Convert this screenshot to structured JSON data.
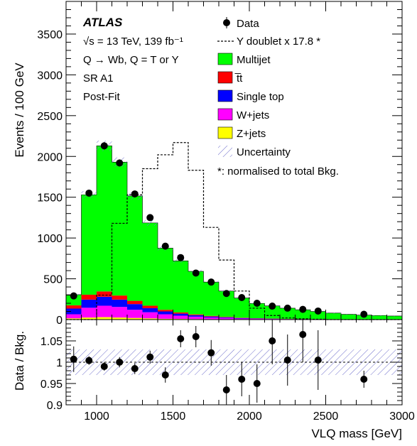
{
  "chart_data": {
    "type": "bar",
    "xlabel": "VLQ mass [GeV]",
    "xlim": [
      800,
      3000
    ],
    "x_ticks": [
      "1000",
      "1500",
      "2000",
      "2500",
      "3000"
    ],
    "bin_edges": [
      800,
      900,
      1000,
      1100,
      1200,
      1300,
      1400,
      1500,
      1600,
      1700,
      1800,
      1900,
      2000,
      2100,
      2200,
      2300,
      2400,
      2500,
      2600,
      2700,
      2800,
      2900,
      3000
    ],
    "main": {
      "ylabel": "Events / 100 GeV",
      "ylim": [
        0,
        3900
      ],
      "y_ticks": [
        "0",
        "500",
        "1000",
        "1500",
        "2000",
        "2500",
        "3000",
        "3500"
      ],
      "stack": [
        {
          "name": "Z+jets",
          "color": "#ffff00",
          "values": [
            15,
            25,
            30,
            25,
            20,
            15,
            10,
            8,
            6,
            5,
            4,
            3,
            2,
            2,
            1,
            1,
            1,
            1,
            0,
            0,
            0,
            0
          ]
        },
        {
          "name": "W+jets",
          "color": "#ff00ff",
          "values": [
            50,
            120,
            140,
            130,
            100,
            75,
            55,
            40,
            30,
            20,
            15,
            10,
            8,
            6,
            4,
            3,
            2,
            2,
            1,
            1,
            1,
            1
          ]
        },
        {
          "name": "Single top",
          "color": "#0000ff",
          "values": [
            70,
            100,
            110,
            90,
            70,
            50,
            35,
            25,
            18,
            12,
            9,
            6,
            4,
            3,
            2,
            2,
            1,
            1,
            1,
            1,
            1,
            1
          ]
        },
        {
          "name": "t̅t",
          "color": "#ff0000",
          "values": [
            40,
            60,
            65,
            50,
            40,
            30,
            20,
            15,
            10,
            8,
            6,
            4,
            3,
            2,
            2,
            1,
            1,
            1,
            1,
            1,
            1,
            1
          ]
        },
        {
          "name": "Multijet",
          "color": "#00ff00",
          "values": [
            130,
            1225,
            1785,
            1635,
            1285,
            1015,
            755,
            632,
            527,
            415,
            316,
            242,
            181,
            155,
            131,
            113,
            95,
            75,
            62,
            52,
            47,
            41
          ]
        }
      ],
      "data": {
        "name": "Data",
        "x": [
          850,
          950,
          1050,
          1150,
          1250,
          1350,
          1450,
          1550,
          1650,
          1750,
          1850,
          1950,
          2050,
          2150,
          2250,
          2350,
          2450,
          2750
        ],
        "y": [
          290,
          1550,
          2130,
          1920,
          1540,
          1250,
          900,
          760,
          570,
          460,
          320,
          270,
          200,
          165,
          140,
          125,
          105,
          65
        ]
      },
      "signal": {
        "name": "Y doublet x 17.8 *",
        "values": [
          0,
          0,
          300,
          1180,
          1530,
          1850,
          2020,
          2170,
          1830,
          1130,
          730,
          350,
          140,
          50,
          20,
          10,
          5,
          0,
          0,
          0,
          0,
          0
        ]
      },
      "uncertainty_label": "Uncertainty",
      "legend_placement": "top-right"
    },
    "ratio": {
      "ylabel": "Data / Bkg.",
      "ylim": [
        0.9,
        1.1
      ],
      "y_ticks": [
        "0.9",
        "0.95",
        "1",
        "1.05"
      ],
      "reference": 1.0,
      "points": [
        {
          "x": 850,
          "y": 1.007,
          "err": 0.03
        },
        {
          "x": 950,
          "y": 1.004,
          "err": 0.01
        },
        {
          "x": 1050,
          "y": 0.99,
          "err": 0.01
        },
        {
          "x": 1150,
          "y": 1.0,
          "err": 0.012
        },
        {
          "x": 1250,
          "y": 0.985,
          "err": 0.013
        },
        {
          "x": 1350,
          "y": 1.012,
          "err": 0.015
        },
        {
          "x": 1450,
          "y": 0.97,
          "err": 0.018
        },
        {
          "x": 1550,
          "y": 1.055,
          "err": 0.02
        },
        {
          "x": 1650,
          "y": 1.06,
          "err": 0.025
        },
        {
          "x": 1750,
          "y": 1.022,
          "err": 0.03
        },
        {
          "x": 1850,
          "y": 0.935,
          "err": 0.035
        },
        {
          "x": 1950,
          "y": 0.96,
          "err": 0.04
        },
        {
          "x": 2050,
          "y": 0.95,
          "err": 0.045
        },
        {
          "x": 2150,
          "y": 1.05,
          "err": 0.055
        },
        {
          "x": 2250,
          "y": 1.005,
          "err": 0.06
        },
        {
          "x": 2350,
          "y": 1.065,
          "err": 0.065
        },
        {
          "x": 2450,
          "y": 1.005,
          "err": 0.07
        },
        {
          "x": 2750,
          "y": 0.96,
          "err": 0.02
        }
      ],
      "band_halfwidth": 0.03
    },
    "annotations": {
      "experiment": "ATLAS",
      "energy": "√s = 13 TeV, 139 fb⁻¹",
      "channel": "Q → Wb, Q = T or Y",
      "region": "SR A1",
      "fit": "Post-Fit",
      "signal_note": "*: normalised to total Bkg."
    }
  }
}
